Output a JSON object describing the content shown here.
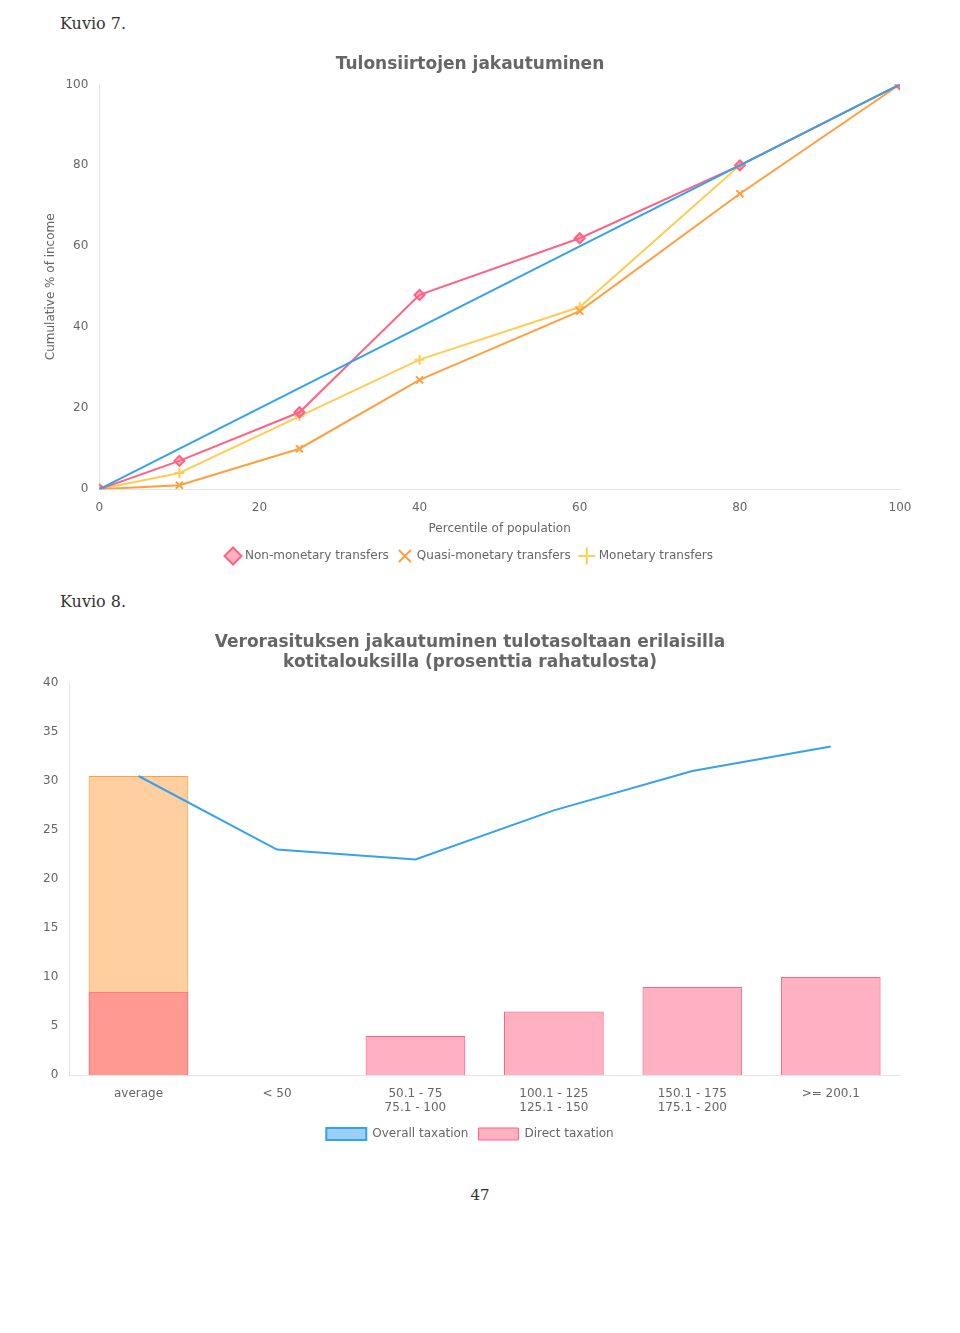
{
  "chart_data": [
    {
      "type": "line",
      "title": "Tulonsiirtojen jakautuminen",
      "annotations": [
        "Kuvio 7."
      ],
      "xlabel": "Percentile of population",
      "ylabel": "Cumulative % of income",
      "xlim": [
        0,
        100
      ],
      "ylim": [
        0,
        100
      ],
      "xticks": [
        0,
        20,
        40,
        60,
        80,
        100
      ],
      "yticks": [
        0,
        20,
        40,
        60,
        80,
        100
      ],
      "grid": false,
      "legend": "bottom",
      "series": [
        {
          "x": [
            0,
            100
          ],
          "values": [
            0,
            100
          ],
          "marker": "none"
        },
        {
          "name": "Non-monetary transfers",
          "x": [
            0,
            10,
            25,
            40,
            60,
            80,
            100
          ],
          "values": [
            0,
            7,
            19,
            48,
            62,
            80,
            100
          ],
          "marker": "diamond"
        },
        {
          "name": "Quasi-monetary transfers",
          "x": [
            0,
            10,
            25,
            40,
            60,
            80,
            100
          ],
          "values": [
            0,
            1,
            10,
            27,
            44,
            73,
            100
          ],
          "marker": "x"
        },
        {
          "name": "Monetary transfers",
          "x": [
            0,
            10,
            25,
            40,
            60,
            80,
            100
          ],
          "values": [
            0,
            4,
            18,
            32,
            45,
            80,
            100
          ],
          "marker": "plus"
        }
      ]
    },
    {
      "type": "bar",
      "title": [
        "Verorasituksen jakautuminen tulotasoltaan erilaisilla",
        "kotitalouksilla (prosenttia rahatulosta)"
      ],
      "annotations": [
        "Kuvio 8.",
        "47"
      ],
      "categories": [
        "average",
        "< 50",
        "50.1 - 75\n75.1 - 100",
        "100.1 - 125\n125.1 - 150",
        "150.1 - 175\n175.1 - 200",
        ">= 200.1"
      ],
      "ylim": [
        0,
        40
      ],
      "yticks": [
        0,
        5,
        10,
        15,
        20,
        25,
        30,
        35,
        40
      ],
      "grid": false,
      "legend": "bottom",
      "series": [
        {
          "name": "Overall taxation",
          "type": "line",
          "values": [
            30.5,
            23.0,
            22.0,
            27.0,
            31.0,
            33.5
          ],
          "marker": "none"
        },
        {
          "name": "Direct taxation",
          "type": "bar",
          "values": [
            8.5,
            0,
            4.0,
            6.5,
            9.0,
            10.0
          ]
        },
        {
          "type": "bar",
          "values": [
            30.5,
            null,
            null,
            null,
            null,
            null
          ]
        }
      ]
    }
  ]
}
